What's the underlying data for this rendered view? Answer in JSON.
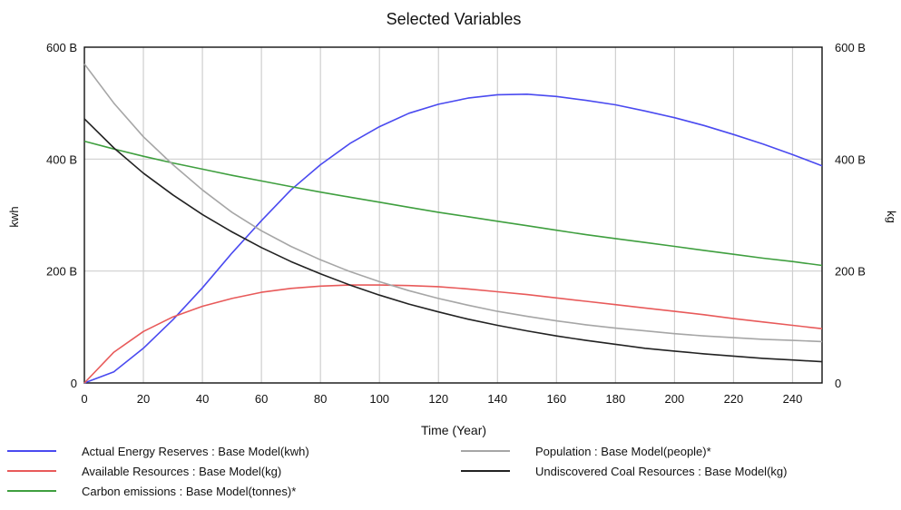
{
  "chart_data": {
    "type": "line",
    "title": "Selected Variables",
    "xlabel": "Time (Year)",
    "ylabel_left": "kwh",
    "ylabel_right": "kg",
    "xlim": [
      0,
      250
    ],
    "ylim": [
      0,
      600
    ],
    "x_ticks": [
      "0",
      "20",
      "40",
      "60",
      "80",
      "100",
      "120",
      "140",
      "160",
      "180",
      "200",
      "220",
      "240"
    ],
    "y_ticks_left": [
      "0",
      "200 B",
      "400 B",
      "600 B"
    ],
    "y_ticks_right": [
      "0",
      "200 B",
      "400 B",
      "600 B"
    ],
    "grid": true,
    "legend_position": "bottom",
    "x": [
      0,
      10,
      20,
      30,
      40,
      50,
      60,
      70,
      80,
      90,
      100,
      110,
      120,
      130,
      140,
      150,
      160,
      170,
      180,
      190,
      200,
      210,
      220,
      230,
      240,
      250
    ],
    "series": [
      {
        "name": "Actual Energy Reserves : Base Model(kwh)",
        "color": "#4a4af0",
        "values": [
          0,
          20,
          62,
          113,
          170,
          232,
          290,
          345,
          390,
          428,
          458,
          482,
          498,
          509,
          515,
          516,
          512,
          505,
          497,
          486,
          474,
          460,
          444,
          427,
          408,
          388
        ]
      },
      {
        "name": "Available Resources : Base Model(kg)",
        "color": "#e85a5a",
        "values": [
          0,
          55,
          92,
          118,
          137,
          151,
          162,
          169,
          173,
          175,
          175,
          174,
          172,
          168,
          163,
          158,
          152,
          146,
          140,
          134,
          128,
          122,
          115,
          109,
          103,
          97
        ]
      },
      {
        "name": "Carbon emissions : Base Model(tonnes)*",
        "color": "#3f9f3f",
        "values": [
          432,
          418,
          405,
          393,
          382,
          371,
          361,
          351,
          341,
          332,
          323,
          314,
          305,
          297,
          289,
          281,
          273,
          265,
          258,
          251,
          244,
          237,
          230,
          223,
          217,
          210
        ]
      },
      {
        "name": "Population : Base Model(people)*",
        "color": "#a6a6a6",
        "values": [
          570,
          500,
          440,
          390,
          345,
          305,
          272,
          244,
          220,
          199,
          181,
          165,
          151,
          139,
          128,
          119,
          111,
          104,
          98,
          93,
          88,
          84,
          81,
          78,
          76,
          74
        ]
      },
      {
        "name": "Undiscovered Coal Resources : Base Model(kg)",
        "color": "#222222",
        "values": [
          472,
          420,
          375,
          336,
          301,
          270,
          242,
          217,
          195,
          175,
          157,
          141,
          127,
          114,
          103,
          93,
          84,
          76,
          69,
          62,
          57,
          52,
          48,
          44,
          41,
          38
        ]
      }
    ]
  }
}
